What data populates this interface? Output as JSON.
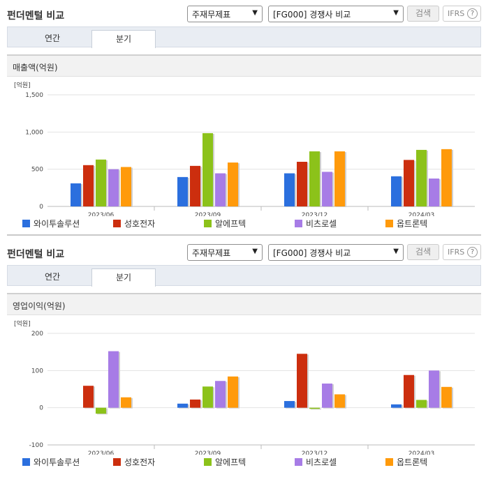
{
  "panels": [
    {
      "title": "펀더멘털 비교",
      "select1": "주재무제표",
      "select2": "[FG000] 경쟁사 비교",
      "search_label": "검색",
      "ifrs_label": "IFRS",
      "ifrs_help": "?",
      "tabs": [
        "연간",
        "분기"
      ],
      "active_tab": 1,
      "section_title": "매출액(억원)"
    },
    {
      "title": "펀더멘털 비교",
      "select1": "주재무제표",
      "select2": "[FG000] 경쟁사 비교",
      "search_label": "검색",
      "ifrs_label": "IFRS",
      "ifrs_help": "?",
      "tabs": [
        "연간",
        "분기"
      ],
      "active_tab": 1,
      "section_title": "영업이익(억원)"
    }
  ],
  "legend": [
    {
      "name": "와이투솔루션",
      "color": "#2b6fde"
    },
    {
      "name": "성호전자",
      "color": "#cc2e0e"
    },
    {
      "name": "알에프텍",
      "color": "#8cc21a"
    },
    {
      "name": "비츠로셀",
      "color": "#a77ce6"
    },
    {
      "name": "옵트론텍",
      "color": "#ff9a0b"
    }
  ],
  "chart_data": [
    {
      "type": "bar",
      "unit_label": "[억원]",
      "categories": [
        "2023/06",
        "2023/09",
        "2023/12",
        "2024/03"
      ],
      "ylim": [
        0,
        1500
      ],
      "yticks": [
        0,
        500,
        1000,
        1500
      ],
      "ytick_labels": [
        "0",
        "500",
        "1,000",
        "1,500"
      ],
      "series": [
        {
          "name": "와이투솔루션",
          "values": [
            310,
            395,
            445,
            405
          ]
        },
        {
          "name": "성호전자",
          "values": [
            555,
            545,
            600,
            625
          ]
        },
        {
          "name": "알에프텍",
          "values": [
            630,
            985,
            740,
            760
          ]
        },
        {
          "name": "비츠로셀",
          "values": [
            500,
            445,
            465,
            375
          ]
        },
        {
          "name": "옵트론텍",
          "values": [
            530,
            590,
            740,
            770
          ]
        }
      ]
    },
    {
      "type": "bar",
      "unit_label": "[억원]",
      "categories": [
        "2023/06",
        "2023/09",
        "2023/12",
        "2024/03"
      ],
      "ylim": [
        -100,
        200
      ],
      "yticks": [
        -100,
        0,
        100,
        200
      ],
      "ytick_labels": [
        "-100",
        "0",
        "100",
        "200"
      ],
      "series": [
        {
          "name": "와이투솔루션",
          "values": [
            0,
            11,
            18,
            9
          ]
        },
        {
          "name": "성호전자",
          "values": [
            59,
            22,
            145,
            88
          ]
        },
        {
          "name": "알에프텍",
          "values": [
            -16,
            57,
            -3,
            21
          ]
        },
        {
          "name": "비츠로셀",
          "values": [
            152,
            72,
            65,
            100
          ]
        },
        {
          "name": "옵트론텍",
          "values": [
            28,
            84,
            36,
            56
          ]
        }
      ]
    }
  ]
}
